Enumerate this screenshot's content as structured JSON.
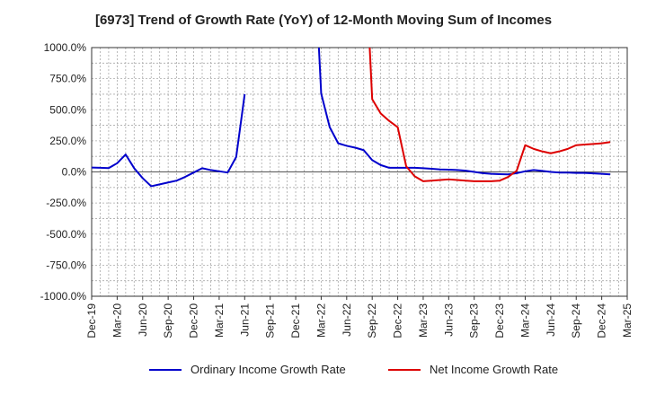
{
  "chart_data": {
    "type": "line",
    "title": "[6973]  Trend of Growth Rate (YoY) of 12-Month Moving Sum of Incomes",
    "ylim": [
      -1000,
      1000
    ],
    "yticks": [
      1000,
      750,
      500,
      250,
      0,
      -250,
      -500,
      -750,
      -1000
    ],
    "ytick_labels": [
      "1000.0%",
      "750.0%",
      "500.0%",
      "250.0%",
      "0.0%",
      "-250.0%",
      "-500.0%",
      "-750.0%",
      "-1000.0%"
    ],
    "x_categories": [
      "Dec-19",
      "Mar-20",
      "Jun-20",
      "Sep-20",
      "Dec-20",
      "Mar-21",
      "Jun-21",
      "Sep-21",
      "Dec-21",
      "Mar-22",
      "Jun-22",
      "Sep-22",
      "Dec-22",
      "Mar-23",
      "Jun-23",
      "Sep-23",
      "Dec-23",
      "Mar-24",
      "Jun-24",
      "Sep-24",
      "Dec-24",
      "Mar-25"
    ],
    "grid": true,
    "legend_position": "bottom",
    "series": [
      {
        "name": "Ordinary Income Growth Rate",
        "color": "#0000cc",
        "points": [
          [
            0,
            35
          ],
          [
            1,
            33
          ],
          [
            2,
            31
          ],
          [
            3,
            70
          ],
          [
            4,
            140
          ],
          [
            5,
            30
          ],
          [
            6,
            -50
          ],
          [
            7,
            -115
          ],
          [
            8,
            -100
          ],
          [
            9,
            -85
          ],
          [
            10,
            -70
          ],
          [
            11,
            -40
          ],
          [
            12,
            -5
          ],
          [
            13,
            30
          ],
          [
            14,
            15
          ],
          [
            15,
            5
          ],
          [
            16,
            -5
          ],
          [
            17,
            120
          ],
          [
            18,
            625
          ],
          [
            null,
            null
          ],
          [
            26,
            2000
          ],
          [
            27,
            630
          ],
          [
            28,
            360
          ],
          [
            29,
            230
          ],
          [
            30,
            210
          ],
          [
            31,
            195
          ],
          [
            32,
            175
          ],
          [
            33,
            95
          ],
          [
            34,
            55
          ],
          [
            35,
            33
          ],
          [
            36,
            33
          ],
          [
            37,
            33
          ],
          [
            38,
            33
          ],
          [
            39,
            30
          ],
          [
            40,
            25
          ],
          [
            41,
            20
          ],
          [
            42,
            18
          ],
          [
            43,
            15
          ],
          [
            44,
            10
          ],
          [
            45,
            0
          ],
          [
            46,
            -10
          ],
          [
            47,
            -15
          ],
          [
            48,
            -18
          ],
          [
            49,
            -20
          ],
          [
            50,
            -10
          ],
          [
            51,
            5
          ],
          [
            52,
            15
          ],
          [
            53,
            8
          ],
          [
            54,
            0
          ],
          [
            55,
            -5
          ],
          [
            56,
            -5
          ],
          [
            57,
            -8
          ],
          [
            58,
            -8
          ],
          [
            59,
            -12
          ],
          [
            60,
            -15
          ],
          [
            61,
            -20
          ]
        ]
      },
      {
        "name": "Net Income Growth Rate",
        "color": "#dd0000",
        "points": [
          [
            32,
            2000
          ],
          [
            33,
            585
          ],
          [
            34,
            470
          ],
          [
            35,
            410
          ],
          [
            36,
            360
          ],
          [
            37,
            45
          ],
          [
            38,
            -35
          ],
          [
            39,
            -75
          ],
          [
            40,
            -70
          ],
          [
            41,
            -65
          ],
          [
            42,
            -60
          ],
          [
            43,
            -65
          ],
          [
            44,
            -70
          ],
          [
            45,
            -75
          ],
          [
            46,
            -75
          ],
          [
            47,
            -75
          ],
          [
            48,
            -70
          ],
          [
            49,
            -40
          ],
          [
            50,
            10
          ],
          [
            51,
            215
          ],
          [
            52,
            185
          ],
          [
            53,
            165
          ],
          [
            54,
            150
          ],
          [
            55,
            165
          ],
          [
            56,
            185
          ],
          [
            57,
            215
          ],
          [
            58,
            220
          ],
          [
            59,
            225
          ],
          [
            60,
            230
          ],
          [
            61,
            240
          ]
        ]
      }
    ]
  },
  "legend": {
    "items": [
      {
        "label": "Ordinary Income Growth Rate",
        "color": "#0000cc"
      },
      {
        "label": "Net Income Growth Rate",
        "color": "#dd0000"
      }
    ]
  }
}
